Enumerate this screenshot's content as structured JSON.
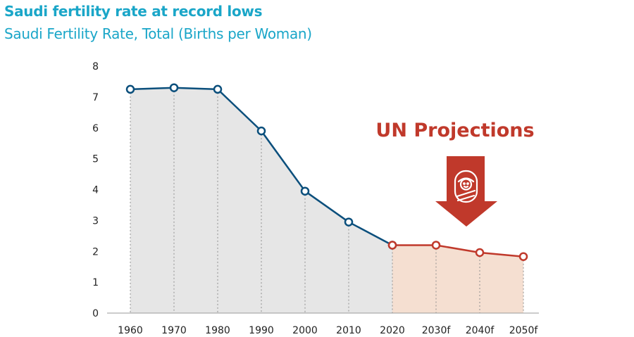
{
  "chart_data": {
    "type": "area",
    "title": "Saudi fertility rate at record lows",
    "subtitle": "Saudi Fertility Rate, Total (Births per Woman)",
    "categories": [
      "1960",
      "1970",
      "1980",
      "1990",
      "2000",
      "2010",
      "2020",
      "2030f",
      "2040f",
      "2050f"
    ],
    "series": [
      {
        "values": [
          7.25,
          7.3,
          7.25,
          5.9,
          3.95,
          2.95,
          2.2,
          null,
          null,
          null
        ],
        "color": "#0b4f7c",
        "fill": "#e6e6e6"
      },
      {
        "values": [
          null,
          null,
          null,
          null,
          null,
          null,
          2.2,
          2.2,
          1.96,
          1.83
        ],
        "color": "#c0392b",
        "fill": "#f5dfd1"
      }
    ],
    "ylim": [
      0,
      8
    ],
    "yticks": [
      0,
      1,
      2,
      3,
      4,
      5,
      6,
      7,
      8
    ],
    "xlabel": "",
    "ylabel": "",
    "grid": "dotted vertical at each category",
    "annotation": {
      "text": "UN Projections",
      "color": "#c0392b",
      "icon": "baby-icon"
    }
  }
}
